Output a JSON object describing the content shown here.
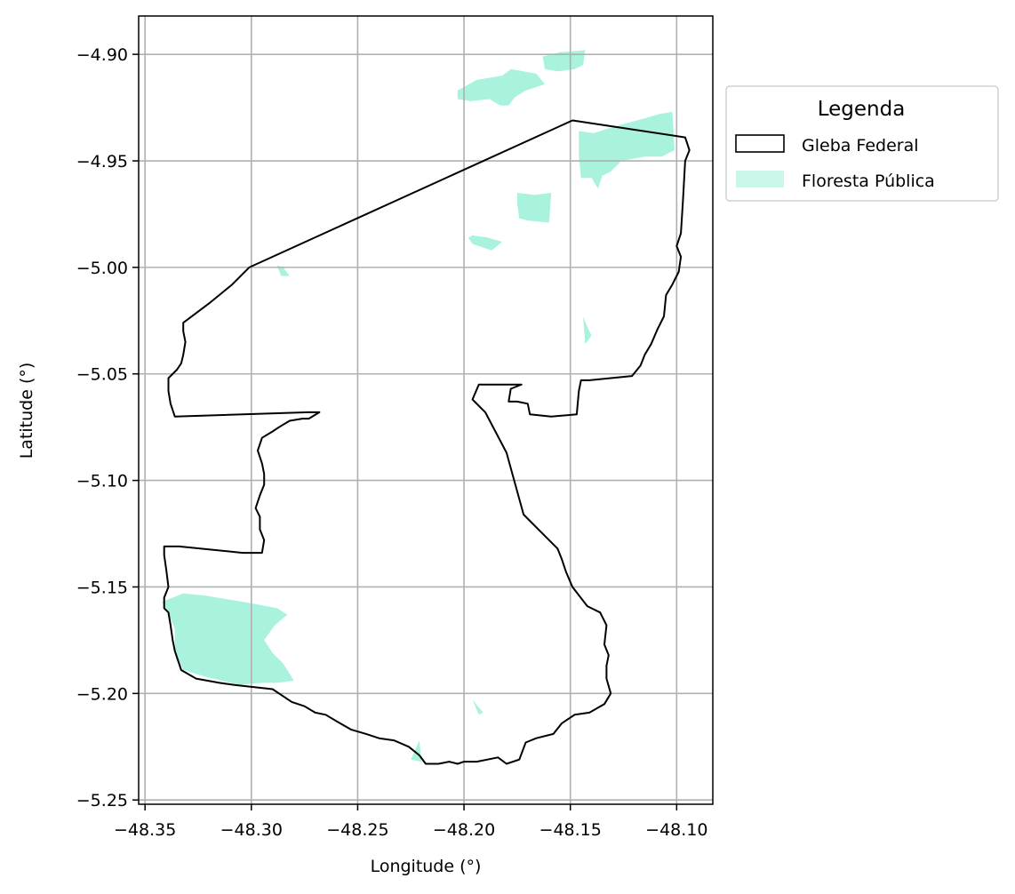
{
  "chart_data": {
    "type": "map",
    "xlabel": "Longitude (°)",
    "ylabel": "Latitude (°)",
    "xlim": [
      -48.353,
      -48.083
    ],
    "ylim": [
      -5.252,
      -4.882
    ],
    "xticks": [
      -48.35,
      -48.3,
      -48.25,
      -48.2,
      -48.15,
      -48.1
    ],
    "xtick_labels": [
      "−48.35",
      "−48.30",
      "−48.25",
      "−48.20",
      "−48.15",
      "−48.10"
    ],
    "yticks": [
      -4.9,
      -4.95,
      -5.0,
      -5.05,
      -5.1,
      -5.15,
      -5.2,
      -5.25
    ],
    "ytick_labels": [
      "−4.90",
      "−4.95",
      "−5.00",
      "−5.05",
      "−5.10",
      "−5.15",
      "−5.20",
      "−5.25"
    ],
    "grid": true,
    "legend": {
      "title": "Legenda",
      "placement": "outside upper right",
      "entries": [
        {
          "label": "Gleba Federal",
          "style": "outline",
          "edge_color": "#000000",
          "face_color": "#ffffff"
        },
        {
          "label": "Floresta Pública",
          "style": "fill",
          "face_color": "#a8f2de"
        }
      ]
    },
    "layers": [
      {
        "name": "Gleba Federal",
        "style": "outline",
        "color": "#000000",
        "coordinates": [
          [
            -48.149,
            -4.931
          ],
          [
            -48.096,
            -4.939
          ],
          [
            -48.094,
            -4.945
          ],
          [
            -48.096,
            -4.95
          ],
          [
            -48.097,
            -4.968
          ],
          [
            -48.098,
            -4.984
          ],
          [
            -48.1,
            -4.99
          ],
          [
            -48.098,
            -4.995
          ],
          [
            -48.099,
            -5.002
          ],
          [
            -48.102,
            -5.008
          ],
          [
            -48.105,
            -5.013
          ],
          [
            -48.106,
            -5.023
          ],
          [
            -48.109,
            -5.029
          ],
          [
            -48.112,
            -5.036
          ],
          [
            -48.115,
            -5.041
          ],
          [
            -48.117,
            -5.046
          ],
          [
            -48.121,
            -5.051
          ],
          [
            -48.141,
            -5.053
          ],
          [
            -48.145,
            -5.053
          ],
          [
            -48.146,
            -5.058
          ],
          [
            -48.147,
            -5.069
          ],
          [
            -48.159,
            -5.07
          ],
          [
            -48.169,
            -5.069
          ],
          [
            -48.17,
            -5.064
          ],
          [
            -48.175,
            -5.063
          ],
          [
            -48.179,
            -5.063
          ],
          [
            -48.178,
            -5.057
          ],
          [
            -48.173,
            -5.055
          ],
          [
            -48.182,
            -5.055
          ],
          [
            -48.193,
            -5.055
          ],
          [
            -48.196,
            -5.062
          ],
          [
            -48.19,
            -5.068
          ],
          [
            -48.18,
            -5.087
          ],
          [
            -48.172,
            -5.116
          ],
          [
            -48.156,
            -5.132
          ],
          [
            -48.154,
            -5.137
          ],
          [
            -48.152,
            -5.143
          ],
          [
            -48.149,
            -5.15
          ],
          [
            -48.142,
            -5.159
          ],
          [
            -48.136,
            -5.162
          ],
          [
            -48.133,
            -5.168
          ],
          [
            -48.134,
            -5.177
          ],
          [
            -48.132,
            -5.182
          ],
          [
            -48.133,
            -5.187
          ],
          [
            -48.133,
            -5.193
          ],
          [
            -48.131,
            -5.2
          ],
          [
            -48.134,
            -5.205
          ],
          [
            -48.141,
            -5.209
          ],
          [
            -48.148,
            -5.21
          ],
          [
            -48.154,
            -5.214
          ],
          [
            -48.158,
            -5.219
          ],
          [
            -48.166,
            -5.221
          ],
          [
            -48.171,
            -5.223
          ],
          [
            -48.174,
            -5.231
          ],
          [
            -48.18,
            -5.233
          ],
          [
            -48.184,
            -5.23
          ],
          [
            -48.194,
            -5.232
          ],
          [
            -48.2,
            -5.232
          ],
          [
            -48.203,
            -5.233
          ],
          [
            -48.207,
            -5.232
          ],
          [
            -48.212,
            -5.233
          ],
          [
            -48.218,
            -5.233
          ],
          [
            -48.221,
            -5.229
          ],
          [
            -48.226,
            -5.225
          ],
          [
            -48.233,
            -5.222
          ],
          [
            -48.24,
            -5.221
          ],
          [
            -48.246,
            -5.219
          ],
          [
            -48.253,
            -5.217
          ],
          [
            -48.26,
            -5.213
          ],
          [
            -48.265,
            -5.21
          ],
          [
            -48.27,
            -5.209
          ],
          [
            -48.275,
            -5.206
          ],
          [
            -48.281,
            -5.204
          ],
          [
            -48.29,
            -5.198
          ],
          [
            -48.308,
            -5.196
          ],
          [
            -48.315,
            -5.195
          ],
          [
            -48.326,
            -5.193
          ],
          [
            -48.333,
            -5.189
          ],
          [
            -48.336,
            -5.18
          ],
          [
            -48.337,
            -5.175
          ],
          [
            -48.338,
            -5.168
          ],
          [
            -48.339,
            -5.162
          ],
          [
            -48.341,
            -5.16
          ],
          [
            -48.341,
            -5.155
          ],
          [
            -48.339,
            -5.15
          ],
          [
            -48.34,
            -5.142
          ],
          [
            -48.341,
            -5.135
          ],
          [
            -48.341,
            -5.131
          ],
          [
            -48.334,
            -5.131
          ],
          [
            -48.304,
            -5.134
          ],
          [
            -48.295,
            -5.134
          ],
          [
            -48.294,
            -5.128
          ],
          [
            -48.296,
            -5.123
          ],
          [
            -48.296,
            -5.117
          ],
          [
            -48.298,
            -5.113
          ],
          [
            -48.296,
            -5.107
          ],
          [
            -48.294,
            -5.102
          ],
          [
            -48.294,
            -5.097
          ],
          [
            -48.295,
            -5.092
          ],
          [
            -48.297,
            -5.086
          ],
          [
            -48.295,
            -5.08
          ],
          [
            -48.29,
            -5.077
          ],
          [
            -48.287,
            -5.075
          ],
          [
            -48.282,
            -5.072
          ],
          [
            -48.276,
            -5.071
          ],
          [
            -48.273,
            -5.071
          ],
          [
            -48.268,
            -5.068
          ],
          [
            -48.273,
            -5.068
          ],
          [
            -48.336,
            -5.07
          ],
          [
            -48.338,
            -5.064
          ],
          [
            -48.339,
            -5.058
          ],
          [
            -48.339,
            -5.052
          ],
          [
            -48.335,
            -5.048
          ],
          [
            -48.333,
            -5.045
          ],
          [
            -48.332,
            -5.041
          ],
          [
            -48.331,
            -5.035
          ],
          [
            -48.332,
            -5.03
          ],
          [
            -48.332,
            -5.026
          ],
          [
            -48.32,
            -5.017
          ],
          [
            -48.309,
            -5.008
          ],
          [
            -48.301,
            -5.0
          ],
          [
            -48.149,
            -4.931
          ]
        ]
      },
      {
        "name": "Floresta Pública",
        "style": "fill",
        "color": "#a8f2de",
        "polygons": [
          [
            [
              -48.203,
              -4.917
            ],
            [
              -48.194,
              -4.912
            ],
            [
              -48.182,
              -4.91
            ],
            [
              -48.178,
              -4.907
            ],
            [
              -48.166,
              -4.909
            ],
            [
              -48.162,
              -4.914
            ],
            [
              -48.171,
              -4.917
            ],
            [
              -48.176,
              -4.92
            ],
            [
              -48.179,
              -4.924
            ],
            [
              -48.183,
              -4.924
            ],
            [
              -48.188,
              -4.921
            ],
            [
              -48.197,
              -4.922
            ],
            [
              -48.203,
              -4.921
            ]
          ],
          [
            [
              -48.163,
              -4.901
            ],
            [
              -48.155,
              -4.899
            ],
            [
              -48.143,
              -4.898
            ],
            [
              -48.144,
              -4.905
            ],
            [
              -48.148,
              -4.907
            ],
            [
              -48.156,
              -4.908
            ],
            [
              -48.162,
              -4.907
            ]
          ],
          [
            [
              -48.146,
              -4.936
            ],
            [
              -48.139,
              -4.937
            ],
            [
              -48.133,
              -4.935
            ],
            [
              -48.126,
              -4.933
            ],
            [
              -48.115,
              -4.93
            ],
            [
              -48.108,
              -4.928
            ],
            [
              -48.102,
              -4.927
            ],
            [
              -48.101,
              -4.945
            ],
            [
              -48.107,
              -4.948
            ],
            [
              -48.115,
              -4.948
            ],
            [
              -48.126,
              -4.95
            ],
            [
              -48.131,
              -4.955
            ],
            [
              -48.135,
              -4.957
            ],
            [
              -48.137,
              -4.963
            ],
            [
              -48.14,
              -4.958
            ],
            [
              -48.145,
              -4.958
            ],
            [
              -48.146,
              -4.948
            ]
          ],
          [
            [
              -48.175,
              -4.965
            ],
            [
              -48.167,
              -4.966
            ],
            [
              -48.159,
              -4.965
            ],
            [
              -48.16,
              -4.979
            ],
            [
              -48.17,
              -4.978
            ],
            [
              -48.174,
              -4.977
            ],
            [
              -48.175,
              -4.97
            ]
          ],
          [
            [
              -48.196,
              -4.985
            ],
            [
              -48.189,
              -4.986
            ],
            [
              -48.182,
              -4.988
            ],
            [
              -48.187,
              -4.992
            ],
            [
              -48.196,
              -4.989
            ],
            [
              -48.198,
              -4.986
            ]
          ],
          [
            [
              -48.342,
              -5.157
            ],
            [
              -48.332,
              -5.153
            ],
            [
              -48.322,
              -5.154
            ],
            [
              -48.31,
              -5.156
            ],
            [
              -48.298,
              -5.158
            ],
            [
              -48.288,
              -5.16
            ],
            [
              -48.283,
              -5.163
            ],
            [
              -48.289,
              -5.168
            ],
            [
              -48.294,
              -5.175
            ],
            [
              -48.29,
              -5.181
            ],
            [
              -48.285,
              -5.186
            ],
            [
              -48.28,
              -5.194
            ],
            [
              -48.288,
              -5.195
            ],
            [
              -48.295,
              -5.195
            ],
            [
              -48.306,
              -5.196
            ],
            [
              -48.322,
              -5.192
            ],
            [
              -48.332,
              -5.189
            ],
            [
              -48.336,
              -5.18
            ],
            [
              -48.336,
              -5.17
            ],
            [
              -48.339,
              -5.162
            ]
          ],
          [
            [
              -48.221,
              -5.222
            ],
            [
              -48.225,
              -5.231
            ],
            [
              -48.22,
              -5.232
            ]
          ],
          [
            [
              -48.196,
              -5.203
            ],
            [
              -48.191,
              -5.209
            ],
            [
              -48.193,
              -5.21
            ]
          ],
          [
            [
              -48.288,
              -4.999
            ],
            [
              -48.285,
              -5.0
            ],
            [
              -48.282,
              -5.004
            ],
            [
              -48.286,
              -5.004
            ]
          ],
          [
            [
              -48.144,
              -5.023
            ],
            [
              -48.142,
              -5.028
            ],
            [
              -48.14,
              -5.032
            ],
            [
              -48.143,
              -5.036
            ]
          ]
        ]
      }
    ]
  }
}
